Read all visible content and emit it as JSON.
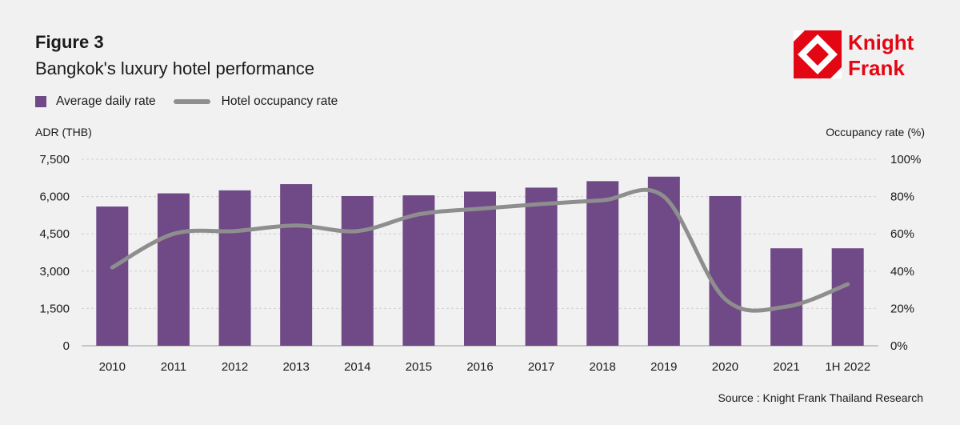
{
  "figure": {
    "label": "Figure 3",
    "title": "Bangkok's luxury hotel performance"
  },
  "logo": {
    "line1": "Knight",
    "line2": "Frank",
    "brand_color": "#e30613"
  },
  "legend": {
    "items": [
      {
        "label": "Average daily rate",
        "type": "bar",
        "color": "#704a87"
      },
      {
        "label": "Hotel occupancy rate",
        "type": "line",
        "color": "#8e8e8e"
      }
    ]
  },
  "source": "Source : Knight Frank Thailand Research",
  "chart_data": {
    "type": "bar",
    "categories": [
      "2010",
      "2011",
      "2012",
      "2013",
      "2014",
      "2015",
      "2016",
      "2017",
      "2018",
      "2019",
      "2020",
      "2021",
      "1H 2022"
    ],
    "series": [
      {
        "name": "Average daily rate",
        "type": "bar",
        "axis": "left",
        "color": "#704a87",
        "values": [
          5600,
          6130,
          6250,
          6500,
          6020,
          6050,
          6200,
          6360,
          6620,
          6800,
          6020,
          3920,
          3920
        ]
      },
      {
        "name": "Hotel occupancy rate",
        "type": "line",
        "axis": "right",
        "color": "#8e8e8e",
        "values": [
          42,
          60,
          61.5,
          64.5,
          61.5,
          70.5,
          73.5,
          76,
          78,
          80,
          25,
          21,
          33
        ]
      }
    ],
    "ylabel": "ADR (THB)",
    "y2label": "Occupancy rate (%)",
    "ylim": [
      0,
      7500
    ],
    "yticks": [
      "0",
      "1,500",
      "3,000",
      "4,500",
      "6,000",
      "7,500"
    ],
    "y2lim": [
      0,
      100
    ],
    "y2ticks": [
      "0%",
      "20%",
      "40%",
      "60%",
      "80%",
      "100%"
    ],
    "grid": true,
    "legend_position": "top-left"
  }
}
